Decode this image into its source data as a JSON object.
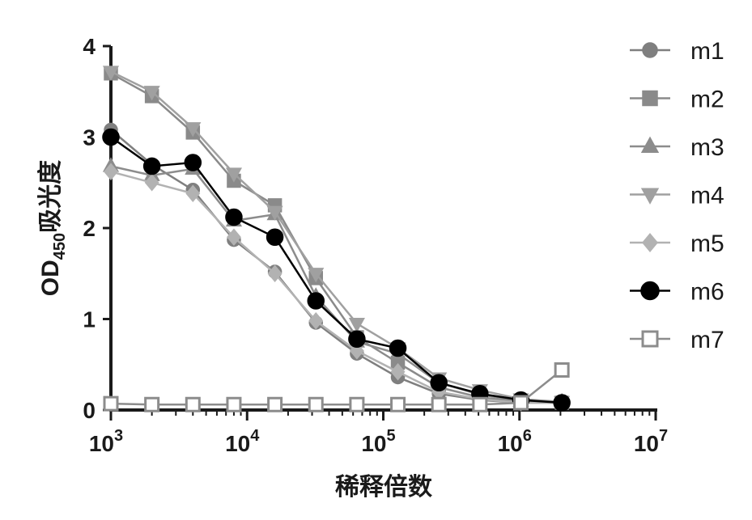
{
  "chart_data": {
    "type": "line",
    "title": "",
    "xlabel": "稀释倍数",
    "ylabel": "OD",
    "ylabel_subscript": "450",
    "ylabel_suffix": "吸光度",
    "x_scale": "log",
    "xlim": [
      1000,
      10000000
    ],
    "ylim": [
      0,
      4
    ],
    "x_ticks": [
      {
        "base": "10",
        "exp": "3",
        "value": 1000
      },
      {
        "base": "10",
        "exp": "4",
        "value": 10000
      },
      {
        "base": "10",
        "exp": "5",
        "value": 100000
      },
      {
        "base": "10",
        "exp": "6",
        "value": 1000000
      },
      {
        "base": "10",
        "exp": "7",
        "value": 10000000
      }
    ],
    "y_ticks": [
      "0",
      "1",
      "2",
      "3",
      "4"
    ],
    "grid": false,
    "legend_position": "right",
    "x": [
      1000,
      2000,
      4000,
      8000,
      16000,
      32000,
      64000,
      128000,
      256000,
      512000,
      1024000,
      2048000
    ],
    "series": [
      {
        "name": "m1",
        "marker": "circle",
        "color": "#7f7f7f",
        "filled": true,
        "values": [
          3.08,
          2.7,
          2.42,
          1.87,
          1.52,
          0.96,
          0.62,
          0.36,
          0.18,
          0.11,
          0.08,
          0.08
        ]
      },
      {
        "name": "m2",
        "marker": "square",
        "color": "#8a8a8a",
        "filled": true,
        "values": [
          3.7,
          3.45,
          3.05,
          2.52,
          2.25,
          1.45,
          0.8,
          0.52,
          0.25,
          0.14,
          0.09,
          0.08
        ]
      },
      {
        "name": "m3",
        "marker": "triangle-up",
        "color": "#8c8c8c",
        "filled": true,
        "values": [
          2.68,
          2.58,
          2.65,
          2.08,
          2.15,
          1.25,
          0.75,
          0.62,
          0.3,
          0.17,
          0.1,
          0.09
        ]
      },
      {
        "name": "m4",
        "marker": "triangle-down",
        "color": "#a0a0a0",
        "filled": true,
        "values": [
          3.72,
          3.5,
          3.1,
          2.6,
          2.18,
          1.5,
          0.95,
          0.68,
          0.35,
          0.22,
          0.12,
          0.09
        ]
      },
      {
        "name": "m5",
        "marker": "diamond",
        "color": "#b2b2b2",
        "filled": true,
        "values": [
          2.62,
          2.5,
          2.38,
          1.9,
          1.5,
          0.98,
          0.65,
          0.42,
          0.2,
          0.12,
          0.08,
          0.08
        ]
      },
      {
        "name": "m6",
        "marker": "circle",
        "color": "#000000",
        "filled": true,
        "values": [
          3.0,
          2.68,
          2.72,
          2.12,
          1.9,
          1.2,
          0.78,
          0.68,
          0.3,
          0.18,
          0.11,
          0.08
        ]
      },
      {
        "name": "m7",
        "marker": "square",
        "color": "#8c8c8c",
        "filled": false,
        "values": [
          0.07,
          0.06,
          0.06,
          0.06,
          0.06,
          0.06,
          0.06,
          0.06,
          0.06,
          0.06,
          0.08,
          0.44
        ]
      }
    ]
  }
}
